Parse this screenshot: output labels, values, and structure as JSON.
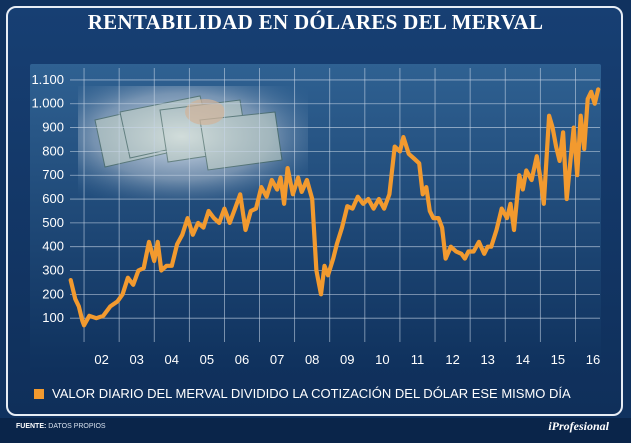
{
  "chart_data": {
    "type": "line",
    "title": "RENTABILIDAD EN DÓLARES DEL MERVAL",
    "legend": "VALOR DIARIO DEL MERVAL DIVIDIDO LA COTIZACIÓN DEL DÓLAR ESE MISMO DÍA",
    "x_ticks": [
      "02",
      "03",
      "04",
      "05",
      "06",
      "07",
      "08",
      "09",
      "10",
      "11",
      "12",
      "13",
      "14",
      "15",
      "16"
    ],
    "y_ticks": [
      "100",
      "200",
      "300",
      "400",
      "500",
      "600",
      "700",
      "800",
      "900",
      "1.000",
      "1.100"
    ],
    "xlim": [
      2001.6,
      2016.7
    ],
    "ylim": [
      0,
      1150
    ],
    "series_color": "#f29a2f",
    "points": [
      [
        2001.62,
        260
      ],
      [
        2001.75,
        180
      ],
      [
        2001.85,
        150
      ],
      [
        2001.95,
        90
      ],
      [
        2002.0,
        70
      ],
      [
        2002.15,
        110
      ],
      [
        2002.35,
        100
      ],
      [
        2002.55,
        110
      ],
      [
        2002.75,
        150
      ],
      [
        2002.95,
        170
      ],
      [
        2003.1,
        200
      ],
      [
        2003.25,
        270
      ],
      [
        2003.4,
        240
      ],
      [
        2003.55,
        300
      ],
      [
        2003.7,
        310
      ],
      [
        2003.85,
        420
      ],
      [
        2004.0,
        340
      ],
      [
        2004.1,
        420
      ],
      [
        2004.2,
        300
      ],
      [
        2004.35,
        320
      ],
      [
        2004.5,
        320
      ],
      [
        2004.65,
        410
      ],
      [
        2004.8,
        450
      ],
      [
        2004.95,
        520
      ],
      [
        2005.1,
        450
      ],
      [
        2005.25,
        500
      ],
      [
        2005.4,
        480
      ],
      [
        2005.55,
        550
      ],
      [
        2005.7,
        520
      ],
      [
        2005.85,
        500
      ],
      [
        2006.0,
        560
      ],
      [
        2006.15,
        500
      ],
      [
        2006.3,
        560
      ],
      [
        2006.45,
        620
      ],
      [
        2006.6,
        470
      ],
      [
        2006.75,
        550
      ],
      [
        2006.9,
        560
      ],
      [
        2007.05,
        650
      ],
      [
        2007.2,
        610
      ],
      [
        2007.35,
        680
      ],
      [
        2007.5,
        640
      ],
      [
        2007.6,
        690
      ],
      [
        2007.7,
        580
      ],
      [
        2007.8,
        730
      ],
      [
        2007.95,
        620
      ],
      [
        2008.1,
        690
      ],
      [
        2008.2,
        630
      ],
      [
        2008.35,
        680
      ],
      [
        2008.5,
        600
      ],
      [
        2008.62,
        300
      ],
      [
        2008.75,
        200
      ],
      [
        2008.85,
        320
      ],
      [
        2008.95,
        280
      ],
      [
        2009.1,
        350
      ],
      [
        2009.2,
        410
      ],
      [
        2009.35,
        480
      ],
      [
        2009.5,
        570
      ],
      [
        2009.65,
        560
      ],
      [
        2009.8,
        610
      ],
      [
        2009.95,
        580
      ],
      [
        2010.1,
        600
      ],
      [
        2010.25,
        560
      ],
      [
        2010.4,
        600
      ],
      [
        2010.55,
        560
      ],
      [
        2010.7,
        620
      ],
      [
        2010.85,
        820
      ],
      [
        2011.0,
        800
      ],
      [
        2011.1,
        860
      ],
      [
        2011.25,
        790
      ],
      [
        2011.4,
        770
      ],
      [
        2011.55,
        750
      ],
      [
        2011.65,
        620
      ],
      [
        2011.75,
        650
      ],
      [
        2011.85,
        550
      ],
      [
        2011.95,
        520
      ],
      [
        2012.1,
        520
      ],
      [
        2012.2,
        480
      ],
      [
        2012.3,
        350
      ],
      [
        2012.45,
        400
      ],
      [
        2012.6,
        380
      ],
      [
        2012.75,
        370
      ],
      [
        2012.85,
        350
      ],
      [
        2012.95,
        380
      ],
      [
        2013.1,
        380
      ],
      [
        2013.25,
        420
      ],
      [
        2013.4,
        370
      ],
      [
        2013.5,
        400
      ],
      [
        2013.6,
        400
      ],
      [
        2013.75,
        470
      ],
      [
        2013.9,
        560
      ],
      [
        2014.05,
        520
      ],
      [
        2014.15,
        580
      ],
      [
        2014.25,
        470
      ],
      [
        2014.4,
        700
      ],
      [
        2014.5,
        640
      ],
      [
        2014.6,
        720
      ],
      [
        2014.75,
        680
      ],
      [
        2014.9,
        780
      ],
      [
        2015.0,
        690
      ],
      [
        2015.1,
        580
      ],
      [
        2015.25,
        950
      ],
      [
        2015.35,
        900
      ],
      [
        2015.45,
        820
      ],
      [
        2015.55,
        760
      ],
      [
        2015.65,
        880
      ],
      [
        2015.75,
        600
      ],
      [
        2015.85,
        750
      ],
      [
        2015.95,
        900
      ],
      [
        2016.05,
        700
      ],
      [
        2016.15,
        950
      ],
      [
        2016.25,
        810
      ],
      [
        2016.35,
        1020
      ],
      [
        2016.45,
        1050
      ],
      [
        2016.55,
        1000
      ],
      [
        2016.65,
        1060
      ]
    ]
  },
  "source": {
    "label": "FUENTE:",
    "text": "DATOS PROPIOS"
  },
  "brand": "iProfesional"
}
